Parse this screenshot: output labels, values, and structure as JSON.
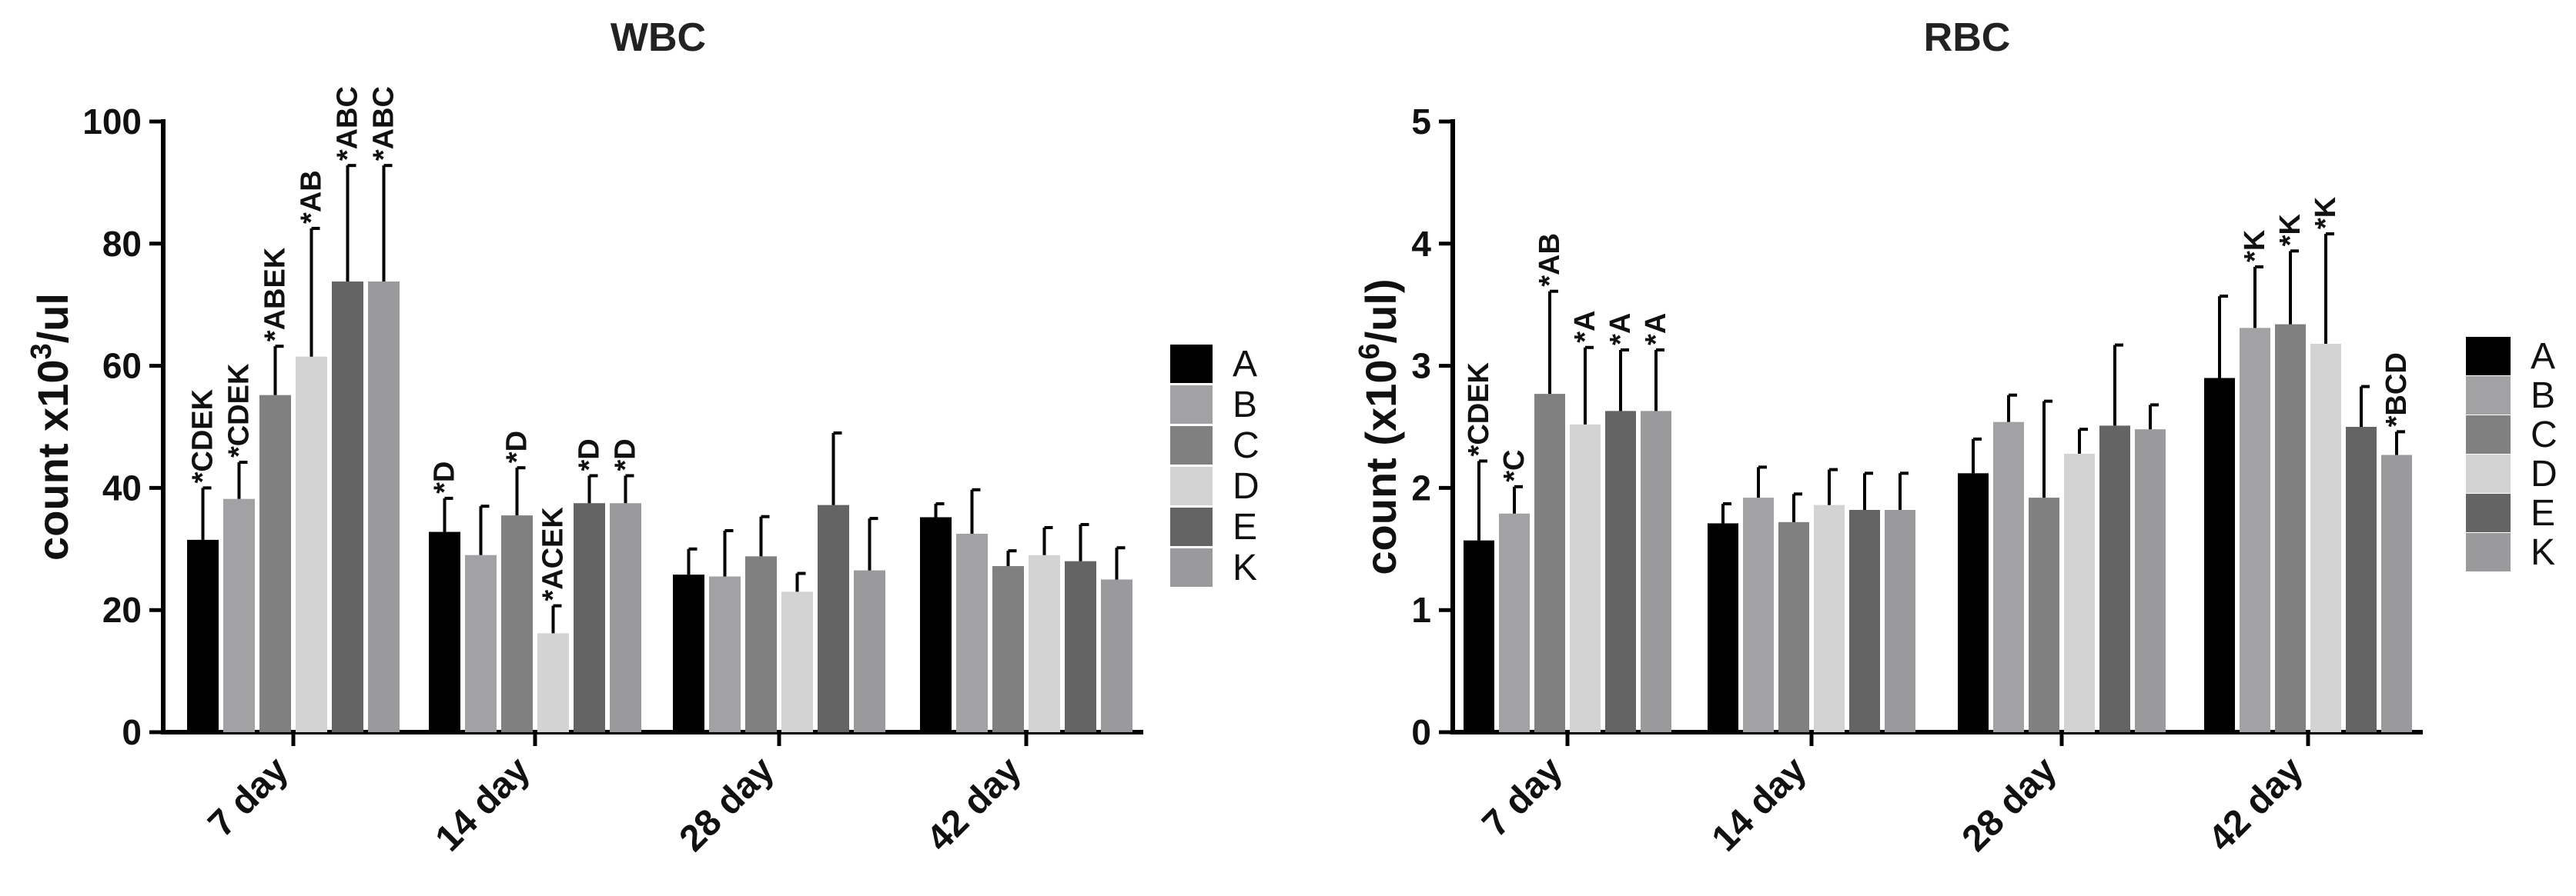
{
  "chart_data": [
    {
      "type": "bar",
      "title": "WBC",
      "ylabel": "count x10^3/ul",
      "ylim": [
        0,
        100
      ],
      "yticks": [
        0,
        20,
        40,
        60,
        80,
        100
      ],
      "categories": [
        "7 day",
        "14 day",
        "28 day",
        "42 day"
      ],
      "legend_position": "right",
      "series": [
        {
          "name": "A",
          "color": "#000000",
          "values": [
            31.5,
            32.8,
            25.8,
            35.2
          ],
          "errors": [
            8.5,
            5.5,
            4.2,
            2.2
          ],
          "annotations": [
            "*CDEK",
            "*D",
            "",
            ""
          ]
        },
        {
          "name": "B",
          "color": "#a2a2a5",
          "values": [
            38.2,
            29.0,
            25.5,
            32.5
          ],
          "errors": [
            6.0,
            8.0,
            7.5,
            7.2
          ],
          "annotations": [
            "*CDEK",
            "",
            "",
            ""
          ]
        },
        {
          "name": "C",
          "color": "#808080",
          "values": [
            55.2,
            35.5,
            28.8,
            27.2
          ],
          "errors": [
            8.0,
            7.8,
            6.5,
            2.5
          ],
          "annotations": [
            "*ABEK",
            "*D",
            "",
            ""
          ]
        },
        {
          "name": "D",
          "color": "#d3d3d3",
          "values": [
            61.5,
            16.2,
            23.0,
            29.0
          ],
          "errors": [
            21.0,
            4.5,
            3.0,
            4.5
          ],
          "annotations": [
            "*AB",
            "*ACEK",
            "",
            ""
          ]
        },
        {
          "name": "E",
          "color": "#646464",
          "values": [
            73.8,
            37.5,
            37.2,
            28.0
          ],
          "errors": [
            19.0,
            4.5,
            11.8,
            6.0
          ],
          "annotations": [
            "*ABC",
            "*D",
            "",
            ""
          ]
        },
        {
          "name": "K",
          "color": "#9a9a9c",
          "values": [
            73.8,
            37.5,
            26.5,
            25.0
          ],
          "errors": [
            19.0,
            4.5,
            8.5,
            5.2
          ],
          "annotations": [
            "*ABC",
            "*D",
            "",
            ""
          ]
        }
      ]
    },
    {
      "type": "bar",
      "title": "RBC",
      "ylabel": "count (x10^6/ul)",
      "ylim": [
        0,
        5
      ],
      "yticks": [
        0,
        1,
        2,
        3,
        4,
        5
      ],
      "categories": [
        "7 day",
        "14 day",
        "28 day",
        "42 day"
      ],
      "legend_position": "right",
      "series": [
        {
          "name": "A",
          "color": "#000000",
          "values": [
            1.57,
            1.71,
            2.12,
            2.9
          ],
          "errors": [
            0.65,
            0.16,
            0.28,
            0.67
          ],
          "annotations": [
            "*CDEK",
            "",
            "",
            ""
          ]
        },
        {
          "name": "B",
          "color": "#a2a2a5",
          "values": [
            1.79,
            1.92,
            2.54,
            3.31
          ],
          "errors": [
            0.22,
            0.25,
            0.22,
            0.5
          ],
          "annotations": [
            "*C",
            "",
            "",
            "*K"
          ]
        },
        {
          "name": "C",
          "color": "#808080",
          "values": [
            2.77,
            1.72,
            1.92,
            3.34
          ],
          "errors": [
            0.84,
            0.23,
            0.79,
            0.6
          ],
          "annotations": [
            "*AB",
            "",
            "",
            "*K"
          ]
        },
        {
          "name": "D",
          "color": "#d3d3d3",
          "values": [
            2.52,
            1.86,
            2.28,
            3.18
          ],
          "errors": [
            0.63,
            0.29,
            0.2,
            0.9
          ],
          "annotations": [
            "*A",
            "",
            "",
            "*K"
          ]
        },
        {
          "name": "E",
          "color": "#646464",
          "values": [
            2.63,
            1.82,
            2.51,
            2.5
          ],
          "errors": [
            0.5,
            0.3,
            0.66,
            0.33
          ],
          "annotations": [
            "*A",
            "",
            "",
            ""
          ]
        },
        {
          "name": "K",
          "color": "#9a9a9c",
          "values": [
            2.63,
            1.82,
            2.48,
            2.27
          ],
          "errors": [
            0.5,
            0.3,
            0.2,
            0.19
          ],
          "annotations": [
            "*A",
            "",
            "",
            "*BCD"
          ]
        }
      ]
    }
  ],
  "ylabel_parts": [
    {
      "base": "count x10",
      "sup": "3",
      "rest": "/ul"
    },
    {
      "base": "count (x10",
      "sup": "6",
      "rest": "/ul)"
    }
  ]
}
